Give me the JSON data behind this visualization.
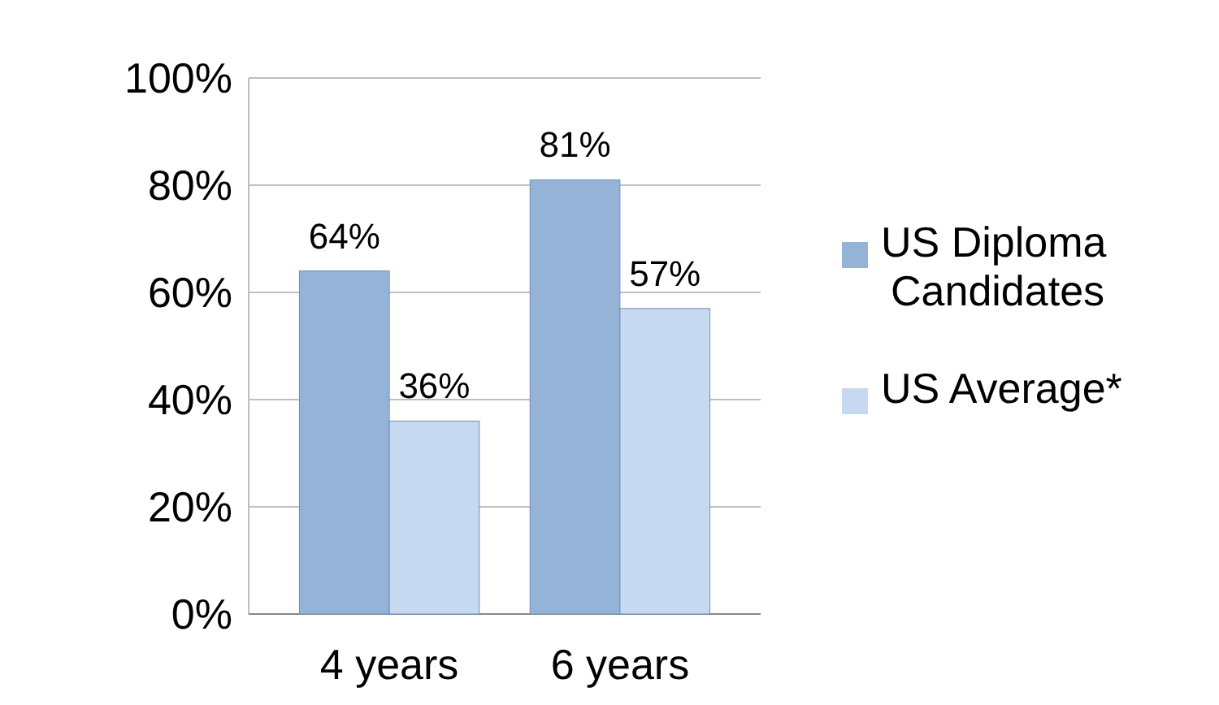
{
  "chart_data": {
    "type": "bar",
    "categories": [
      "4 years",
      "6 years"
    ],
    "series": [
      {
        "name": "US Diploma Candidates",
        "color": "#95b3d7",
        "values": [
          64,
          81
        ],
        "value_labels": [
          "64%",
          "81%"
        ]
      },
      {
        "name": "US Average*",
        "color": "#c6d9f1",
        "values": [
          36,
          57
        ],
        "value_labels": [
          "36%",
          "57%"
        ]
      }
    ],
    "ylim": [
      0,
      100
    ],
    "yticks": [
      {
        "value": 0,
        "label": "0%"
      },
      {
        "value": 20,
        "label": "20%"
      },
      {
        "value": 40,
        "label": "40%"
      },
      {
        "value": 60,
        "label": "60%"
      },
      {
        "value": 80,
        "label": "80%"
      },
      {
        "value": 100,
        "label": "100%"
      }
    ],
    "grid": "y",
    "legend": "right"
  }
}
